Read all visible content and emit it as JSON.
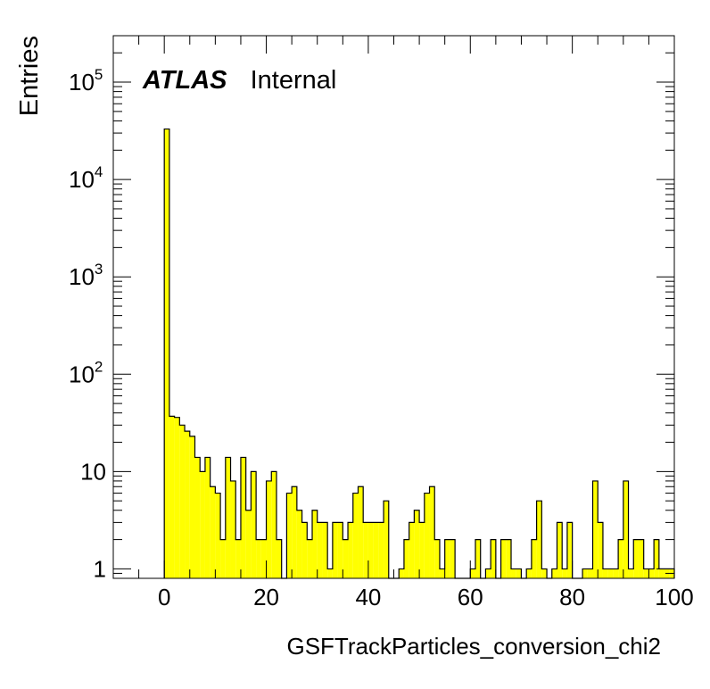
{
  "chart_data": {
    "type": "histogram",
    "xlabel": "GSFTrackParticles_conversion_chi2",
    "ylabel": "Entries",
    "label_bold": "ATLAS",
    "label_normal": "Internal",
    "xlim": [
      -10,
      100
    ],
    "ylim": [
      0.8,
      300000
    ],
    "y_scale": "log",
    "grid": false,
    "legend": "none",
    "fill_color": "#ffff00",
    "x_ticks": [
      0,
      20,
      40,
      60,
      80,
      100
    ],
    "x_tick_labels": [
      "0",
      "20",
      "40",
      "60",
      "80",
      "100"
    ],
    "y_tick_labels": [
      {
        "base": "1",
        "exp": "",
        "value": 1
      },
      {
        "base": "10",
        "exp": "",
        "value": 10
      },
      {
        "base": "10",
        "exp": "2",
        "value": 100
      },
      {
        "base": "10",
        "exp": "3",
        "value": 1000
      },
      {
        "base": "10",
        "exp": "4",
        "value": 10000
      },
      {
        "base": "10",
        "exp": "5",
        "value": 100000
      }
    ],
    "bin_edges_start": 0,
    "bin_width": 1,
    "values": [
      33000,
      37,
      36,
      30,
      26,
      23,
      14,
      10,
      14,
      7,
      6,
      2,
      14,
      8,
      2,
      14,
      4,
      10,
      2,
      2,
      8,
      10,
      2,
      0,
      6,
      7,
      4,
      3,
      2,
      4,
      3,
      3,
      1,
      3,
      3,
      2,
      3,
      6,
      7,
      3,
      3,
      3,
      3,
      5,
      0,
      0,
      1,
      2,
      3,
      4,
      3,
      6,
      7,
      2,
      1,
      2,
      2,
      0,
      0,
      0,
      1,
      2,
      0,
      1,
      2,
      0,
      2,
      2,
      1,
      1,
      0,
      1,
      2,
      5,
      1,
      0,
      1,
      3,
      1,
      3,
      0,
      0,
      1,
      1,
      8,
      3,
      1,
      1,
      1,
      2,
      8,
      1,
      2,
      2,
      1,
      1,
      2,
      1,
      1,
      1
    ]
  }
}
